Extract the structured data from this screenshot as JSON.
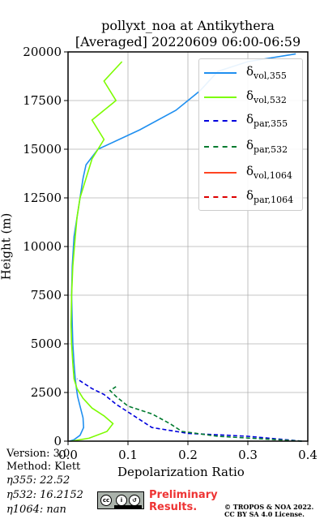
{
  "chart_data": {
    "type": "line",
    "title_line1": "pollyxt_noa at Antikythera",
    "title_line2": "[Averaged] 20220609 06:00-06:59",
    "xlabel": "Depolarization Ratio",
    "ylabel": "Height (m)",
    "xlim": [
      0,
      0.4
    ],
    "ylim": [
      0,
      20000
    ],
    "xticks": [
      "0.0",
      "0.1",
      "0.2",
      "0.3",
      "0.4"
    ],
    "yticks": [
      "0",
      "2500",
      "5000",
      "7500",
      "10000",
      "12500",
      "15000",
      "17500",
      "20000"
    ],
    "grid": true,
    "legend_position": "top-right",
    "series": [
      {
        "name": "vol,355",
        "color": "#1f8ff0",
        "dash": "solid",
        "points": [
          [
            0.003,
            0
          ],
          [
            0.01,
            80
          ],
          [
            0.02,
            300
          ],
          [
            0.026,
            700
          ],
          [
            0.025,
            1200
          ],
          [
            0.02,
            1800
          ],
          [
            0.016,
            2300
          ],
          [
            0.014,
            2700
          ],
          [
            0.012,
            3200
          ],
          [
            0.01,
            4000
          ],
          [
            0.008,
            5000
          ],
          [
            0.007,
            6000
          ],
          [
            0.006,
            7500
          ],
          [
            0.007,
            9000
          ],
          [
            0.01,
            10500
          ],
          [
            0.015,
            11500
          ],
          [
            0.02,
            12500
          ],
          [
            0.025,
            13500
          ],
          [
            0.03,
            14200
          ],
          [
            0.05,
            15000
          ],
          [
            0.12,
            16000
          ],
          [
            0.18,
            17000
          ],
          [
            0.22,
            18000
          ],
          [
            0.25,
            19000
          ],
          [
            0.3,
            19500
          ],
          [
            0.38,
            19900
          ]
        ]
      },
      {
        "name": "vol,532",
        "color": "#7cfc00",
        "dash": "solid",
        "points": [
          [
            0.005,
            0
          ],
          [
            0.035,
            150
          ],
          [
            0.065,
            500
          ],
          [
            0.075,
            900
          ],
          [
            0.06,
            1300
          ],
          [
            0.04,
            1700
          ],
          [
            0.025,
            2200
          ],
          [
            0.015,
            2700
          ],
          [
            0.01,
            3200
          ],
          [
            0.008,
            4000
          ],
          [
            0.006,
            5000
          ],
          [
            0.005,
            6000
          ],
          [
            0.006,
            7500
          ],
          [
            0.008,
            9000
          ],
          [
            0.012,
            10500
          ],
          [
            0.015,
            11500
          ],
          [
            0.02,
            12500
          ],
          [
            0.03,
            13500
          ],
          [
            0.04,
            14500
          ],
          [
            0.06,
            15500
          ],
          [
            0.04,
            16500
          ],
          [
            0.08,
            17500
          ],
          [
            0.06,
            18500
          ],
          [
            0.09,
            19500
          ]
        ]
      },
      {
        "name": "par,355",
        "color": "#0000dd",
        "dash": "dashed",
        "points": [
          [
            0.39,
            0
          ],
          [
            0.3,
            250
          ],
          [
            0.2,
            400
          ],
          [
            0.14,
            700
          ],
          [
            0.11,
            1300
          ],
          [
            0.08,
            1900
          ],
          [
            0.06,
            2400
          ],
          [
            0.04,
            2700
          ],
          [
            0.025,
            3000
          ],
          [
            0.015,
            3200
          ]
        ]
      },
      {
        "name": "par,532",
        "color": "#007a2e",
        "dash": "dashed",
        "points": [
          [
            0.39,
            0
          ],
          [
            0.25,
            250
          ],
          [
            0.19,
            500
          ],
          [
            0.17,
            900
          ],
          [
            0.14,
            1400
          ],
          [
            0.1,
            1800
          ],
          [
            0.08,
            2300
          ],
          [
            0.07,
            2600
          ],
          [
            0.08,
            2800
          ]
        ]
      },
      {
        "name": "vol,1064",
        "color": "#ff4422",
        "dash": "solid",
        "points": []
      },
      {
        "name": "par,1064",
        "color": "#dd0000",
        "dash": "dashed",
        "points": []
      }
    ]
  },
  "legend": {
    "symbol": "δ",
    "items": [
      {
        "sub": "vol,355",
        "color": "#1f8ff0",
        "dash": "solid"
      },
      {
        "sub": "vol,532",
        "color": "#7cfc00",
        "dash": "solid"
      },
      {
        "sub": "par,355",
        "color": "#0000dd",
        "dash": "dashed"
      },
      {
        "sub": "par,532",
        "color": "#007a2e",
        "dash": "dashed"
      },
      {
        "sub": "vol,1064",
        "color": "#ff4422",
        "dash": "solid"
      },
      {
        "sub": "par,1064",
        "color": "#dd0000",
        "dash": "dashed"
      }
    ]
  },
  "info": {
    "version": "Version: 3.0",
    "method": "Method: Klett",
    "eta355": "η355:  22.52",
    "eta532": "η532: 16.2152",
    "eta1064": "η1064:    nan"
  },
  "footer": {
    "preliminary_line1": "Preliminary",
    "preliminary_line2": "Results.",
    "copyright_line1": "© TROPOS & NOA 2022.",
    "copyright_line2": "CC BY SA 4.0 License.",
    "cc_badge": "cc"
  }
}
